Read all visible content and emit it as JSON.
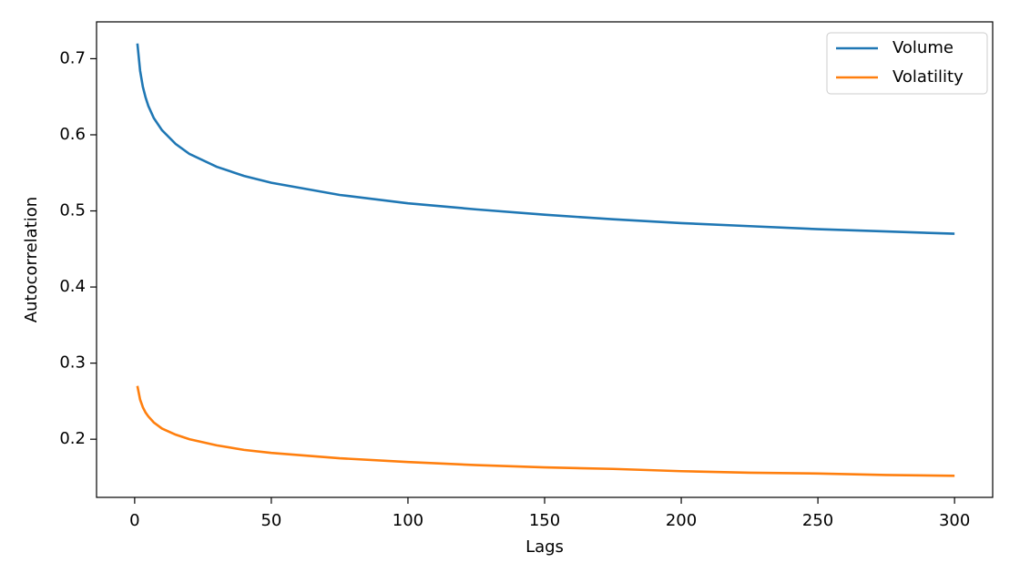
{
  "chart_data": {
    "type": "line",
    "xlabel": "Lags",
    "ylabel": "Autocorrelation",
    "x": [
      1,
      2,
      3,
      4,
      5,
      7,
      10,
      15,
      20,
      30,
      40,
      50,
      75,
      100,
      125,
      150,
      175,
      200,
      225,
      250,
      275,
      300
    ],
    "series": [
      {
        "name": "Volume",
        "color": "#1f77b4",
        "values": [
          0.72,
          0.684,
          0.663,
          0.649,
          0.638,
          0.622,
          0.606,
          0.588,
          0.575,
          0.558,
          0.546,
          0.537,
          0.521,
          0.51,
          0.502,
          0.495,
          0.489,
          0.484,
          0.48,
          0.476,
          0.473,
          0.47
        ]
      },
      {
        "name": "Volatility",
        "color": "#ff7f0e",
        "values": [
          0.27,
          0.252,
          0.242,
          0.235,
          0.23,
          0.222,
          0.214,
          0.206,
          0.2,
          0.192,
          0.186,
          0.182,
          0.175,
          0.17,
          0.166,
          0.163,
          0.161,
          0.158,
          0.156,
          0.155,
          0.153,
          0.152
        ]
      }
    ],
    "xlim": [
      -13.95,
      313.95
    ],
    "xticks": [
      0,
      50,
      100,
      150,
      200,
      250,
      300
    ],
    "ylim": [
      0.1236,
      0.7484
    ],
    "yticks": [
      0.2,
      0.3,
      0.4,
      0.5,
      0.6,
      0.7
    ],
    "legend": "upper right",
    "grid": false
  }
}
